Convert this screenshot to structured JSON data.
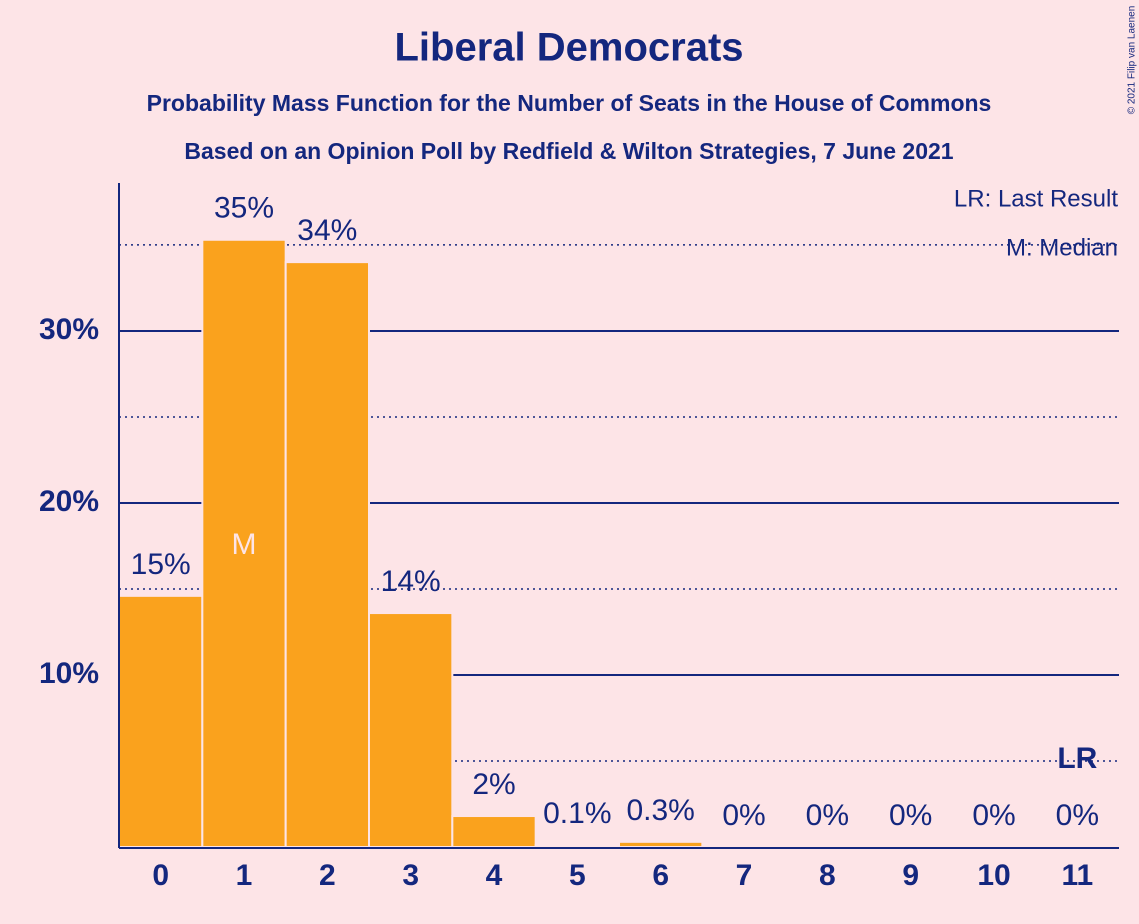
{
  "chart_data": {
    "type": "bar",
    "title": "Liberal Democrats",
    "subtitle": "Probability Mass Function for the Number of Seats in the House of Commons",
    "subtitle2": "Based on an Opinion Poll by Redfield & Wilton Strategies, 7 June 2021",
    "copyright": "© 2021 Filip van Laenen",
    "legend": [
      "LR: Last Result",
      "M: Median"
    ],
    "categories": [
      "0",
      "1",
      "2",
      "3",
      "4",
      "5",
      "6",
      "7",
      "8",
      "9",
      "10",
      "11"
    ],
    "values": [
      14.6,
      35.3,
      34.0,
      13.6,
      1.8,
      0.1,
      0.3,
      0,
      0,
      0,
      0,
      0
    ],
    "value_labels": [
      "15%",
      "35%",
      "34%",
      "14%",
      "2%",
      "0.1%",
      "0.3%",
      "0%",
      "0%",
      "0%",
      "0%",
      "0%"
    ],
    "color": "#faa21d",
    "median": {
      "index": 1,
      "label": "M"
    },
    "last_result": {
      "index": 11,
      "label": "LR"
    },
    "ylim": [
      0,
      38.6
    ],
    "yticks": [
      {
        "value": 10,
        "label": "10%"
      },
      {
        "value": 20,
        "label": "20%"
      },
      {
        "value": 30,
        "label": "30%"
      }
    ],
    "minor_yticks": [
      5,
      15,
      25,
      35
    ],
    "grid": true
  }
}
